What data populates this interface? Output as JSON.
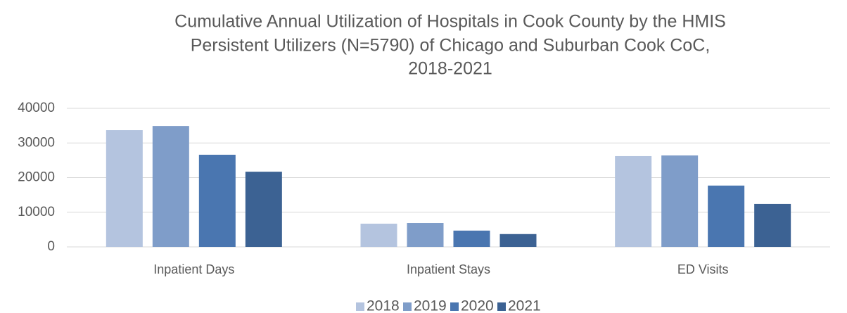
{
  "chart_data": {
    "type": "bar",
    "title": [
      "Cumulative Annual Utilization of Hospitals in Cook County by the HMIS",
      "Persistent Utilizers (N=5790) of Chicago and Suburban Cook CoC,",
      "2018-2021"
    ],
    "categories": [
      "Inpatient Days",
      "Inpatient Stays",
      "ED Visits"
    ],
    "series": [
      {
        "name": "2018",
        "color": "#b4c4df",
        "values": [
          33700,
          6700,
          26200
        ]
      },
      {
        "name": "2019",
        "color": "#7f9dc9",
        "values": [
          34900,
          6900,
          26400
        ]
      },
      {
        "name": "2020",
        "color": "#4a76b0",
        "values": [
          26600,
          4700,
          17700
        ]
      },
      {
        "name": "2021",
        "color": "#3c6293",
        "values": [
          21700,
          3700,
          12400
        ]
      }
    ],
    "ylim": [
      0,
      40000
    ],
    "yticks": [
      0,
      10000,
      20000,
      30000,
      40000
    ],
    "grid": true,
    "legend": "bottom"
  }
}
